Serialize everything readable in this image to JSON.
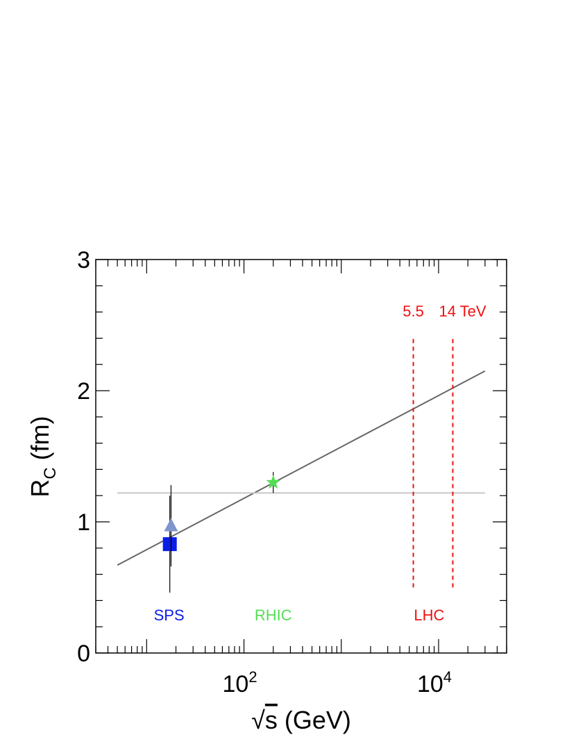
{
  "chart_data": {
    "type": "scatter",
    "xscale": "log",
    "xlim": [
      3,
      50000
    ],
    "ylim": [
      0,
      3
    ],
    "xlabel_root": "s",
    "xlabel_unit": " (GeV)",
    "ylabel_main": "R",
    "ylabel_sub": "C",
    "ylabel_unit": " (fm)",
    "xticks": [
      {
        "value": 100,
        "base": "10",
        "exp": "2"
      },
      {
        "value": 10000,
        "base": "10",
        "exp": "4"
      }
    ],
    "yticks": [
      {
        "value": 0,
        "label": "0"
      },
      {
        "value": 1,
        "label": "1"
      },
      {
        "value": 2,
        "label": "2"
      },
      {
        "value": 3,
        "label": "3"
      }
    ],
    "points": [
      {
        "name": "SPS square",
        "x": 17.3,
        "y": 0.83,
        "yerr": 0.37,
        "marker": "square",
        "color": "#0a1ee6"
      },
      {
        "name": "SPS triangle",
        "x": 17.8,
        "y": 0.97,
        "yerr": 0.31,
        "marker": "triangle",
        "color": "#7f96cc"
      },
      {
        "name": "RHIC star",
        "x": 200,
        "y": 1.3,
        "yerr": 0.08,
        "marker": "star",
        "color": "#55dd55"
      }
    ],
    "lines": [
      {
        "name": "log fit",
        "x": [
          5,
          30000
        ],
        "y": [
          0.67,
          2.15
        ],
        "color": "#666666"
      },
      {
        "name": "constant",
        "x": [
          5,
          30000
        ],
        "y": [
          1.22,
          1.22
        ],
        "color": "#c8c8c8"
      }
    ],
    "vlines": [
      {
        "x": 5500,
        "y": [
          0.5,
          2.4
        ],
        "color": "#ee1111",
        "label": "5.5"
      },
      {
        "x": 14000,
        "y": [
          0.5,
          2.4
        ],
        "color": "#ee1111",
        "label": "14 TeV"
      }
    ],
    "annotations": [
      {
        "text": "SPS",
        "x": 17,
        "y": 0.29,
        "color": "#0a1ee6"
      },
      {
        "text": "RHIC",
        "x": 200,
        "y": 0.29,
        "color": "#55dd55"
      },
      {
        "text": "LHC",
        "x": 8000,
        "y": 0.29,
        "color": "#ee1111"
      }
    ]
  }
}
